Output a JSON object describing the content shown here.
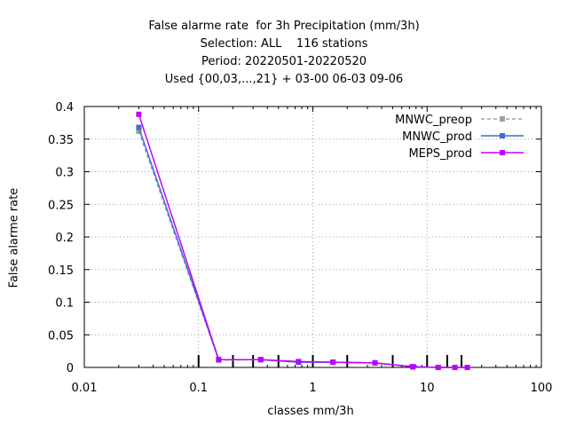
{
  "chart_data": {
    "type": "line",
    "title_lines": [
      "False alarme rate  for 3h Precipitation (mm/3h)",
      "Selection: ALL    116 stations",
      "Period: 20220501-20220520",
      "Used {00,03,...,21} + 03-00 06-03 09-06"
    ],
    "xlabel": "classes mm/3h",
    "ylabel": "False alarme rate",
    "x_scale": "log",
    "xlim": [
      0.01,
      100
    ],
    "ylim": [
      0,
      0.4
    ],
    "x_ticks": [
      0.01,
      0.1,
      1,
      10,
      100
    ],
    "x_tick_labels": [
      "0.01",
      "0.1",
      "1",
      "10",
      "100"
    ],
    "y_ticks": [
      0,
      0.05,
      0.1,
      0.15,
      0.2,
      0.25,
      0.3,
      0.35,
      0.4
    ],
    "y_tick_labels": [
      "0",
      "0.05",
      "0.1",
      "0.15",
      "0.2",
      "0.25",
      "0.3",
      "0.35",
      "0.4"
    ],
    "grid": true,
    "legend_position": "top-right",
    "class_boundaries": [
      0.1,
      0.2,
      0.3,
      0.5,
      1,
      2,
      5,
      10,
      15,
      20
    ],
    "x": [
      0.03,
      0.15,
      0.35,
      0.75,
      1.5,
      3.5,
      7.5,
      12.5,
      17.5,
      22.5
    ],
    "series": [
      {
        "name": "MNWC_preop",
        "color": "#a0a0a0",
        "dashed": true,
        "values": [
          0.362,
          0.011,
          0.012,
          0.008,
          0.008,
          0.007,
          0.001,
          0.0,
          0.0,
          0.0
        ]
      },
      {
        "name": "MNWC_prod",
        "color": "#3a6fd0",
        "dashed": false,
        "values": [
          0.368,
          0.012,
          0.012,
          0.008,
          0.008,
          0.007,
          0.001,
          0.0,
          0.0,
          0.0
        ]
      },
      {
        "name": "MEPS_prod",
        "color": "#c000ff",
        "dashed": false,
        "values": [
          0.388,
          0.012,
          0.012,
          0.009,
          0.008,
          0.007,
          0.001,
          0.0,
          0.0,
          0.0
        ]
      }
    ]
  }
}
